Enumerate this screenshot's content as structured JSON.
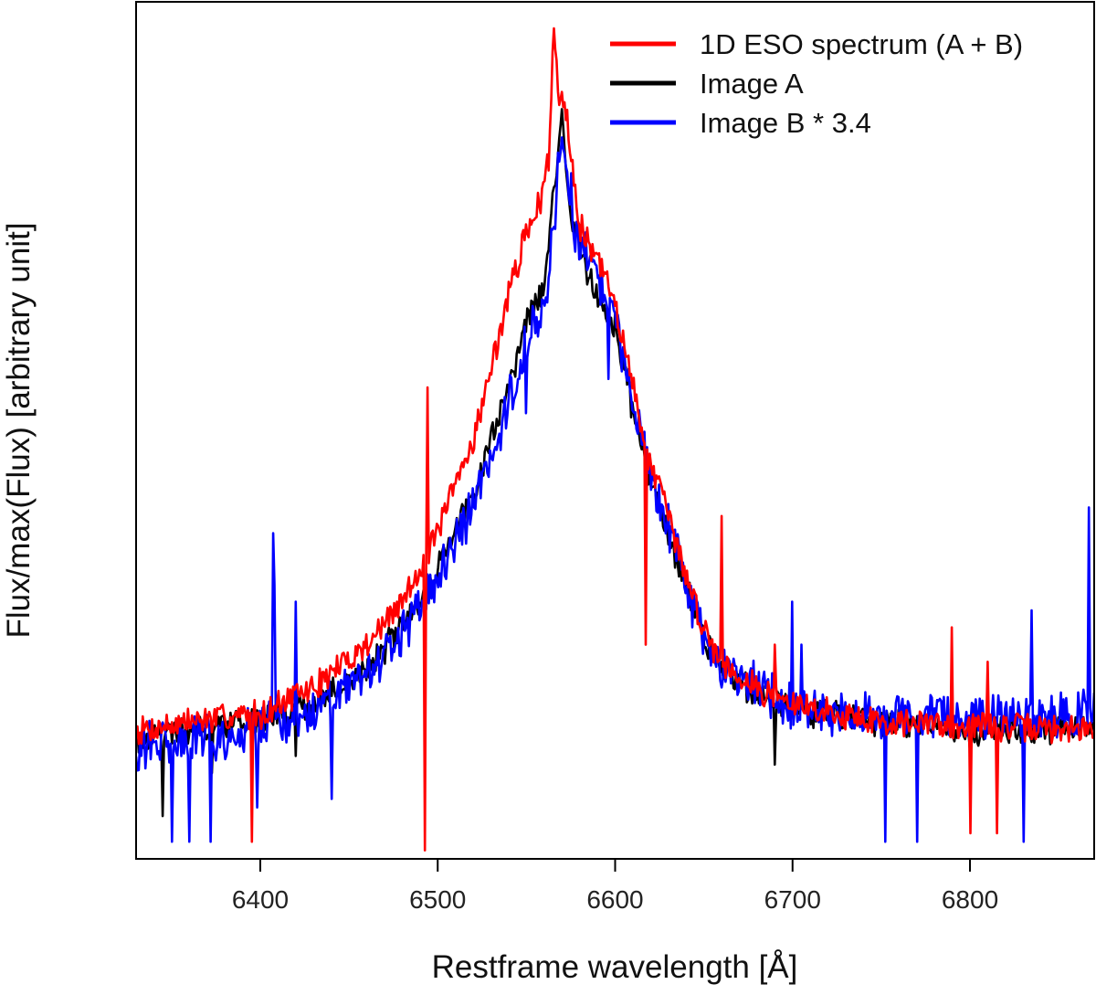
{
  "chart_data": {
    "type": "line",
    "title": "",
    "xlabel": "Restframe wavelength [Å]",
    "ylabel": "Flux/max(Flux) [arbitrary unit]",
    "xlim": [
      6330,
      6870
    ],
    "ylim": [
      0.0,
      1.0
    ],
    "xticks": [
      6400,
      6500,
      6600,
      6700,
      6800
    ],
    "yticks_visible": false,
    "grid": false,
    "legend_position": "top-right",
    "series_order_drawn": [
      "Image A",
      "Image B * 3.4",
      "1D ESO spectrum (A + B)"
    ],
    "series": [
      {
        "name": "1D ESO spectrum (A + B)",
        "color": "#ff0000",
        "baseline": 0.145,
        "wing_level": 0.06,
        "peak": 0.97,
        "noise": 0.012,
        "seed": 7,
        "narrow_dips": [
          [
            6395,
            0.02
          ],
          [
            6493,
            0.01
          ],
          [
            6494,
            0.2
          ],
          [
            6617,
            0.25
          ],
          [
            6790,
            0.01
          ],
          [
            6800,
            0.03
          ],
          [
            6815,
            0.03
          ]
        ],
        "spikes": [
          [
            6494,
            0.55
          ],
          [
            6660,
            0.4
          ],
          [
            6690,
            0.25
          ],
          [
            6790,
            0.27
          ],
          [
            6810,
            0.23
          ]
        ],
        "points": [
          [
            6330,
            0.15
          ],
          [
            6360,
            0.16
          ],
          [
            6400,
            0.17
          ],
          [
            6430,
            0.2
          ],
          [
            6460,
            0.25
          ],
          [
            6480,
            0.3
          ],
          [
            6500,
            0.38
          ],
          [
            6520,
            0.49
          ],
          [
            6530,
            0.57
          ],
          [
            6540,
            0.66
          ],
          [
            6550,
            0.73
          ],
          [
            6558,
            0.77
          ],
          [
            6563,
            0.82
          ],
          [
            6565,
            0.97
          ],
          [
            6568,
            0.9
          ],
          [
            6572,
            0.88
          ],
          [
            6580,
            0.74
          ],
          [
            6590,
            0.7
          ],
          [
            6600,
            0.65
          ],
          [
            6610,
            0.55
          ],
          [
            6620,
            0.46
          ],
          [
            6630,
            0.4
          ],
          [
            6640,
            0.33
          ],
          [
            6650,
            0.27
          ],
          [
            6660,
            0.23
          ],
          [
            6680,
            0.2
          ],
          [
            6700,
            0.18
          ],
          [
            6750,
            0.16
          ],
          [
            6800,
            0.155
          ],
          [
            6870,
            0.15
          ]
        ]
      },
      {
        "name": "Image A",
        "color": "#000000",
        "baseline": 0.145,
        "noise": 0.012,
        "seed": 19,
        "narrow_dips": [
          [
            6345,
            0.05
          ],
          [
            6373,
            0.1
          ],
          [
            6420,
            0.12
          ],
          [
            6493,
            0.3
          ],
          [
            6690,
            0.11
          ],
          [
            6800,
            0.12
          ]
        ],
        "spikes": [],
        "points": [
          [
            6330,
            0.14
          ],
          [
            6360,
            0.15
          ],
          [
            6400,
            0.16
          ],
          [
            6430,
            0.18
          ],
          [
            6460,
            0.22
          ],
          [
            6480,
            0.27
          ],
          [
            6500,
            0.34
          ],
          [
            6520,
            0.43
          ],
          [
            6540,
            0.55
          ],
          [
            6550,
            0.63
          ],
          [
            6560,
            0.67
          ],
          [
            6565,
            0.77
          ],
          [
            6570,
            0.86
          ],
          [
            6575,
            0.75
          ],
          [
            6585,
            0.68
          ],
          [
            6600,
            0.62
          ],
          [
            6610,
            0.52
          ],
          [
            6620,
            0.44
          ],
          [
            6630,
            0.38
          ],
          [
            6640,
            0.32
          ],
          [
            6650,
            0.26
          ],
          [
            6660,
            0.22
          ],
          [
            6680,
            0.19
          ],
          [
            6700,
            0.175
          ],
          [
            6750,
            0.16
          ],
          [
            6800,
            0.15
          ],
          [
            6870,
            0.15
          ]
        ]
      },
      {
        "name": "Image B * 3.4",
        "color": "#0000ff",
        "baseline": 0.145,
        "noise": 0.02,
        "seed": 31,
        "narrow_dips": [
          [
            6350,
            0.02
          ],
          [
            6360,
            0.02
          ],
          [
            6372,
            0.02
          ],
          [
            6398,
            0.06
          ],
          [
            6440,
            0.07
          ],
          [
            6493,
            0.3
          ],
          [
            6550,
            0.52
          ],
          [
            6596,
            0.56
          ],
          [
            6660,
            0.2
          ],
          [
            6752,
            0.02
          ],
          [
            6770,
            0.02
          ],
          [
            6830,
            0.02
          ]
        ],
        "spikes": [
          [
            6407,
            0.38
          ],
          [
            6408,
            0.32
          ],
          [
            6420,
            0.3
          ],
          [
            6575,
            0.8
          ],
          [
            6700,
            0.3
          ],
          [
            6705,
            0.25
          ],
          [
            6835,
            0.29
          ],
          [
            6867,
            0.41
          ]
        ],
        "points": [
          [
            6330,
            0.13
          ],
          [
            6360,
            0.14
          ],
          [
            6400,
            0.15
          ],
          [
            6430,
            0.17
          ],
          [
            6460,
            0.21
          ],
          [
            6480,
            0.26
          ],
          [
            6500,
            0.33
          ],
          [
            6520,
            0.41
          ],
          [
            6540,
            0.53
          ],
          [
            6550,
            0.6
          ],
          [
            6560,
            0.65
          ],
          [
            6565,
            0.73
          ],
          [
            6570,
            0.85
          ],
          [
            6575,
            0.74
          ],
          [
            6585,
            0.7
          ],
          [
            6600,
            0.63
          ],
          [
            6610,
            0.53
          ],
          [
            6620,
            0.45
          ],
          [
            6630,
            0.39
          ],
          [
            6640,
            0.32
          ],
          [
            6650,
            0.26
          ],
          [
            6660,
            0.22
          ],
          [
            6680,
            0.2
          ],
          [
            6700,
            0.18
          ],
          [
            6750,
            0.165
          ],
          [
            6800,
            0.165
          ],
          [
            6870,
            0.17
          ]
        ]
      }
    ]
  }
}
